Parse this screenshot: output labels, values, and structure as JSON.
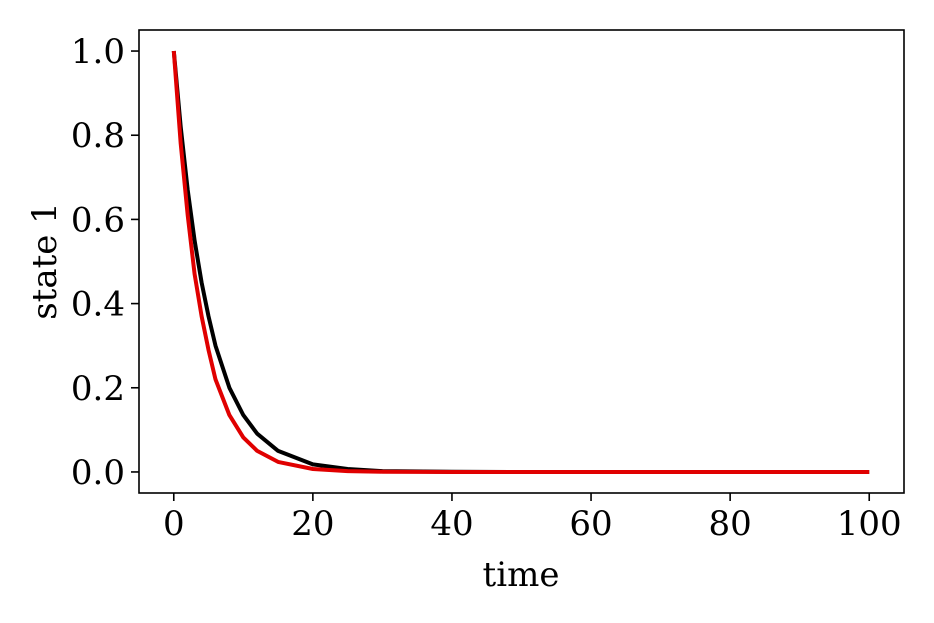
{
  "chart_data": {
    "type": "line",
    "title": "",
    "xlabel": "time",
    "ylabel": "state 1",
    "xlim": [
      -5,
      105
    ],
    "ylim": [
      -0.05,
      1.05
    ],
    "xticks": [
      0,
      20,
      40,
      60,
      80,
      100
    ],
    "xtick_labels": [
      "0",
      "20",
      "40",
      "60",
      "80",
      "100"
    ],
    "yticks": [
      0.0,
      0.2,
      0.4,
      0.6,
      0.8,
      1.0
    ],
    "ytick_labels": [
      "0.0",
      "0.2",
      "0.4",
      "0.6",
      "0.8",
      "1.0"
    ],
    "grid": false,
    "legend": "none",
    "series": [
      {
        "color": "#000000",
        "x": [
          0,
          1,
          2,
          3,
          4,
          5,
          6,
          8,
          10,
          12,
          15,
          20,
          25,
          30,
          40,
          50,
          60,
          70,
          80,
          90,
          100
        ],
        "y": [
          1.0,
          0.82,
          0.67,
          0.55,
          0.45,
          0.37,
          0.3,
          0.2,
          0.135,
          0.091,
          0.05,
          0.018,
          0.007,
          0.002,
          0.0003,
          0.0,
          0.0,
          0.0,
          0.0,
          0.0,
          0.0
        ]
      },
      {
        "color": "#e00000",
        "x": [
          0,
          1,
          2,
          3,
          4,
          5,
          6,
          8,
          10,
          12,
          15,
          20,
          25,
          30,
          40,
          50,
          60,
          70,
          80,
          90,
          100
        ],
        "y": [
          1.0,
          0.78,
          0.61,
          0.47,
          0.37,
          0.29,
          0.22,
          0.135,
          0.082,
          0.05,
          0.024,
          0.007,
          0.002,
          0.0006,
          0.0,
          0.0,
          0.0,
          0.0,
          0.0,
          0.0,
          0.0
        ]
      }
    ]
  }
}
